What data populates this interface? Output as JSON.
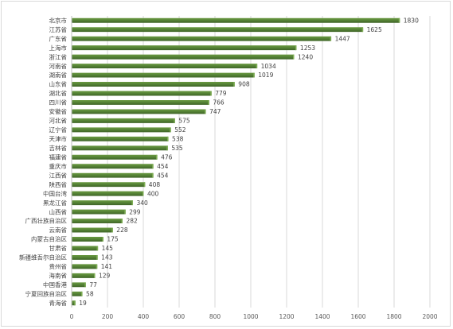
{
  "chart_data": {
    "type": "bar",
    "orientation": "horizontal",
    "categories": [
      "北京市",
      "江苏省",
      "广东省",
      "上海市",
      "浙江省",
      "河南省",
      "湖南省",
      "山东省",
      "湖北省",
      "四川省",
      "安徽省",
      "河北省",
      "辽宁省",
      "天津市",
      "吉林省",
      "福建省",
      "重庆市",
      "江西省",
      "陕西省",
      "中国台湾",
      "黑龙江省",
      "山西省",
      "广西壮族自治区",
      "云南省",
      "内蒙古自治区",
      "甘肃省",
      "新疆维吾尔自治区",
      "贵州省",
      "海南省",
      "中国香港",
      "宁夏回族自治区",
      "青海省"
    ],
    "values": [
      1830,
      1625,
      1447,
      1253,
      1240,
      1034,
      1019,
      908,
      779,
      766,
      747,
      575,
      552,
      538,
      535,
      476,
      454,
      454,
      408,
      400,
      340,
      299,
      282,
      228,
      175,
      145,
      143,
      141,
      129,
      77,
      58,
      19
    ],
    "x_ticks": [
      0,
      200,
      400,
      600,
      800,
      1000,
      1200,
      1400,
      1600,
      1800,
      2000
    ],
    "xlim": [
      0,
      2000
    ],
    "grid": true,
    "legend": "none",
    "title": "",
    "xlabel": "",
    "ylabel": "",
    "bar_color": "#548235"
  }
}
